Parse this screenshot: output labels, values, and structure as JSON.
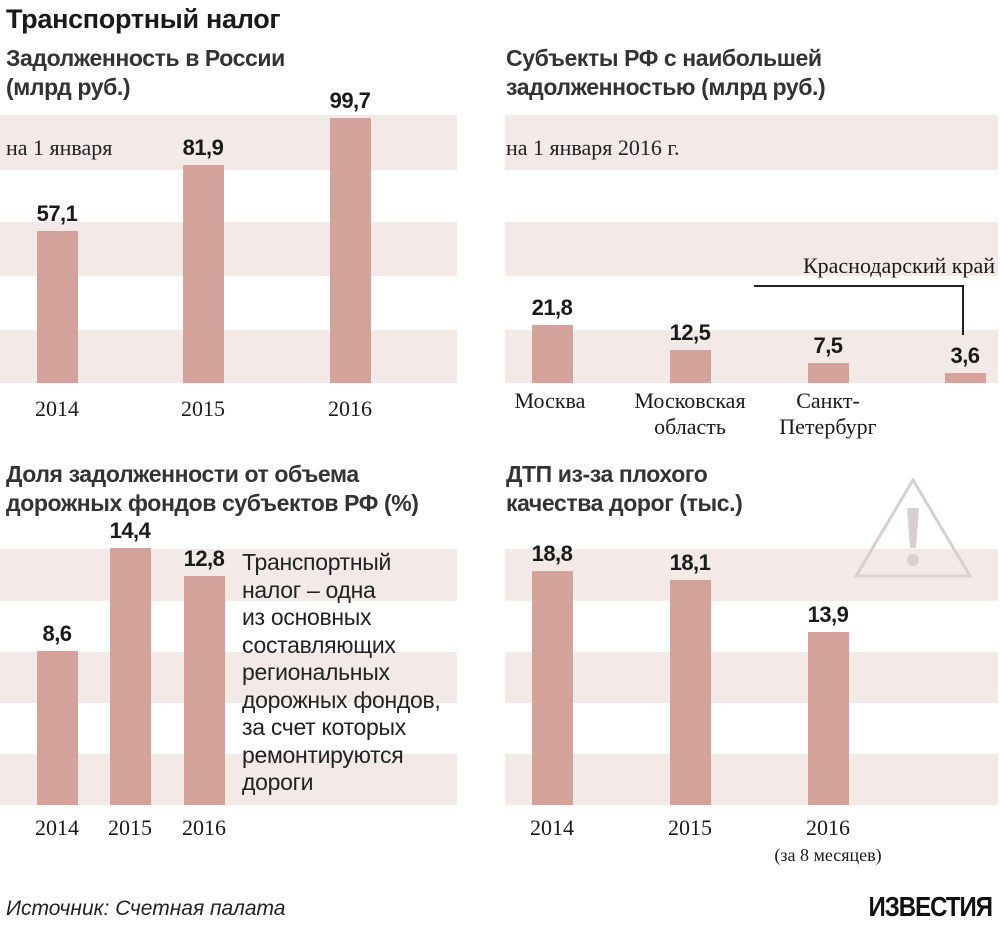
{
  "title": "Транспортный налог",
  "source": "Источник: Счетная палата",
  "brand": "ИЗВЕСТИЯ",
  "side_text": [
    "Транспортный",
    "налог – одна",
    "из основных",
    "составляющих",
    "региональных",
    "дорожных фондов,",
    "за счет которых",
    "ремонтируются",
    "дороги"
  ],
  "colors": {
    "bar": "#d3a39b",
    "band": "#f3e9e7"
  },
  "icons": {
    "warning": "warning-triangle-icon"
  },
  "chart_data": [
    {
      "type": "bar",
      "title": "Задолженность в России",
      "subtitle": "(млрд руб.)",
      "note": "на 1 января",
      "categories": [
        "2014",
        "2015",
        "2016"
      ],
      "values": [
        57.1,
        81.9,
        99.7
      ],
      "labels": [
        "57,1",
        "81,9",
        "99,7"
      ],
      "ylim": [
        0,
        100
      ]
    },
    {
      "type": "bar",
      "title": "Субъекты РФ с наибольшей",
      "subtitle": "задолженностью (млрд руб.)",
      "note": "на 1 января 2016 г.",
      "categories": [
        "Москва",
        "Московская область",
        "Санкт-Петербург",
        "Краснодарский край"
      ],
      "category_lines": [
        [
          "Москва"
        ],
        [
          "Московская",
          "область"
        ],
        [
          "Санкт-",
          "Петербург"
        ],
        [
          "Краснодарский край"
        ]
      ],
      "values": [
        21.8,
        12.5,
        7.5,
        3.6
      ],
      "labels": [
        "21,8",
        "12,5",
        "7,5",
        "3,6"
      ],
      "ylim": [
        0,
        100
      ]
    },
    {
      "type": "bar",
      "title": "Доля задолженности от объема",
      "subtitle": "дорожных фондов субъектов РФ (%)",
      "categories": [
        "2014",
        "2015",
        "2016"
      ],
      "values": [
        8.6,
        14.4,
        12.8
      ],
      "labels": [
        "8,6",
        "14,4",
        "12,8"
      ],
      "ylim": [
        0,
        16
      ]
    },
    {
      "type": "bar",
      "title": "ДТП из-за плохого",
      "subtitle": "качества дорог (тыс.)",
      "categories": [
        "2014",
        "2015",
        "2016"
      ],
      "category_notes": [
        "",
        "",
        "(за 8 месяцев)"
      ],
      "values": [
        18.8,
        18.1,
        13.9
      ],
      "labels": [
        "18,8",
        "18,1",
        "13,9"
      ],
      "ylim": [
        0,
        21
      ]
    }
  ]
}
